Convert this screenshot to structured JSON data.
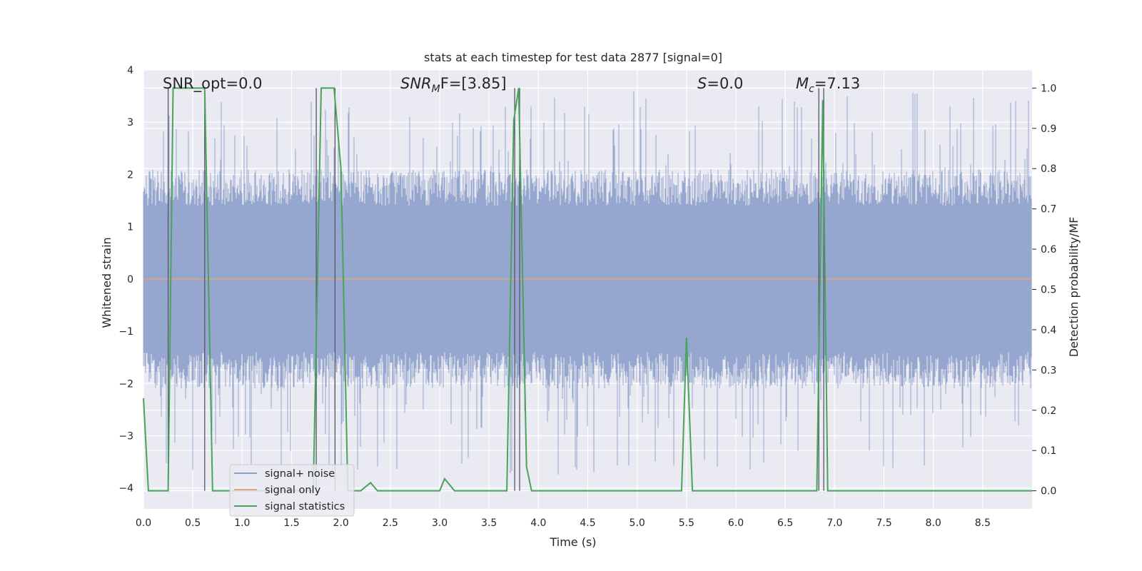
{
  "chart_data": {
    "type": "line",
    "title": "stats at each timestep for test data 2877 [signal=0]",
    "xlabel": "Time (s)",
    "ylabel": "Whitened strain",
    "ylabel_right": "Detection probability/MF",
    "xlim": [
      0,
      9.0
    ],
    "ylim": [
      -4.4,
      4.0
    ],
    "ylim_right": [
      -0.045,
      1.045
    ],
    "xticks": [
      "0.0",
      "0.5",
      "1.0",
      "1.5",
      "2.0",
      "2.5",
      "3.0",
      "3.5",
      "4.0",
      "4.5",
      "5.0",
      "5.5",
      "6.0",
      "6.5",
      "7.0",
      "7.5",
      "8.0",
      "8.5"
    ],
    "yticks_left": [
      "4",
      "3",
      "2",
      "1",
      "0",
      "−1",
      "−2",
      "−3",
      "−4"
    ],
    "yticks_right": [
      "1.0",
      "0.9",
      "0.8",
      "0.7",
      "0.6",
      "0.5",
      "0.4",
      "0.3",
      "0.2",
      "0.1",
      "0.0"
    ],
    "grid": true,
    "legend_position": "lower-left",
    "colors": {
      "noise": "#8da0cb",
      "signal": "#e5a37c",
      "stats": "#4aa35a",
      "vlines": "#555566",
      "background": "#eaeaf2"
    },
    "annotations": {
      "snr_opt": "SNR_opt=0.0",
      "snr_mf_prefix": "SNR",
      "snr_mf_sub": "M",
      "snr_mf_suffix": "F=[3.85]",
      "s_prefix": "S",
      "s_suffix": "=0.0",
      "mc_prefix": "M",
      "mc_sub": "c",
      "mc_suffix": "=7.13"
    },
    "series": [
      {
        "name": "signal+ noise",
        "description": "whitened noise, approx. uniform amplitude within ±2.1 with spikes up to ~3.6",
        "amplitude_range": [
          -3.8,
          3.6
        ]
      },
      {
        "name": "signal only",
        "x": [
          0,
          9.0
        ],
        "y": [
          0,
          0
        ]
      },
      {
        "name": "signal statistics",
        "x": [
          0.0,
          0.05,
          0.25,
          0.3,
          0.62,
          0.7,
          1.72,
          1.8,
          1.93,
          2.0,
          2.07,
          2.2,
          2.3,
          2.37,
          3.0,
          3.05,
          3.15,
          3.68,
          3.75,
          3.8,
          3.88,
          3.93,
          5.45,
          5.5,
          5.56,
          6.82,
          6.88,
          6.93,
          9.0
        ],
        "y": [
          0.23,
          0.0,
          0.0,
          1.0,
          1.0,
          0.0,
          0.0,
          1.0,
          1.0,
          0.8,
          0.0,
          0.0,
          0.02,
          0.0,
          0.0,
          0.03,
          0.0,
          0.0,
          0.92,
          1.0,
          0.06,
          0.0,
          0.0,
          0.38,
          0.0,
          0.0,
          0.97,
          0.0,
          0.0
        ]
      }
    ],
    "vlines": [
      0.25,
      0.62,
      1.75,
      1.94,
      3.76,
      3.81,
      6.84,
      6.89
    ]
  }
}
